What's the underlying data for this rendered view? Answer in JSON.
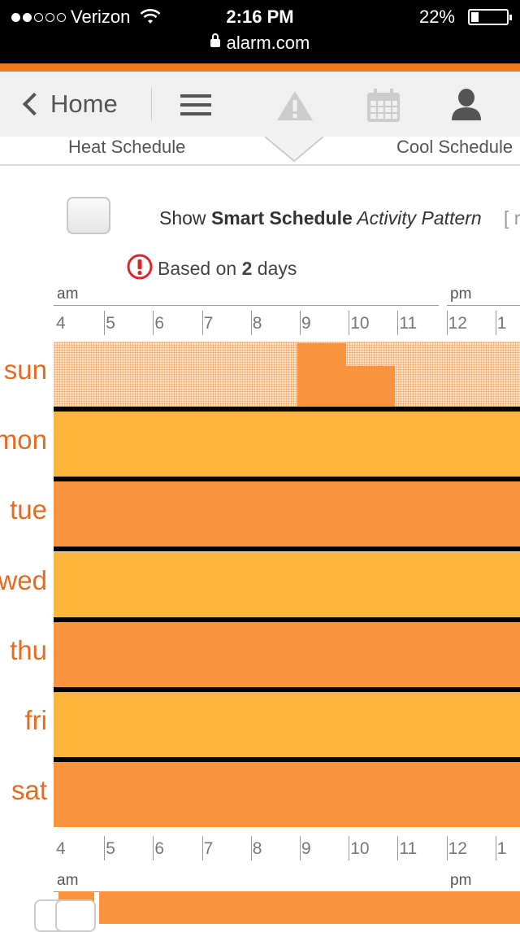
{
  "status_bar": {
    "carrier": "Verizon",
    "signal_bars_filled": 2,
    "signal_bars_total": 5,
    "time": "2:16 PM",
    "battery": "22%",
    "battery_level": 0.22,
    "url": "alarm.com"
  },
  "nav": {
    "back_label": "Home",
    "icons": [
      "menu-icon",
      "alert-icon",
      "calendar-icon",
      "user-icon"
    ]
  },
  "tabs": {
    "heat": "Heat Schedule",
    "cool": "Cool Schedule"
  },
  "smart_schedule": {
    "checked": false,
    "label_show": "Show ",
    "label_bold": "Smart Schedule",
    "label_italic": " Activity Pattern",
    "link_fragment": "[ r",
    "notice_prefix": "Based on ",
    "notice_count": "2",
    "notice_suffix": " days"
  },
  "axis": {
    "am": "am",
    "pm": "pm",
    "hours": [
      "4",
      "5",
      "6",
      "7",
      "8",
      "9",
      "10",
      "11",
      "12",
      "1"
    ]
  },
  "days": [
    {
      "label": "sun",
      "pattern": "activity"
    },
    {
      "label": "mon",
      "pattern": "gold"
    },
    {
      "label": "tue",
      "pattern": "orange"
    },
    {
      "label": "wed",
      "pattern": "gold"
    },
    {
      "label": "thu",
      "pattern": "orange"
    },
    {
      "label": "fri",
      "pattern": "gold"
    },
    {
      "label": "sat",
      "pattern": "orange"
    }
  ],
  "colors": {
    "accent": "#f07a1e",
    "orange_period": "#fa9440",
    "gold_period": "#fbb63b",
    "day_label": "#e86a20"
  }
}
